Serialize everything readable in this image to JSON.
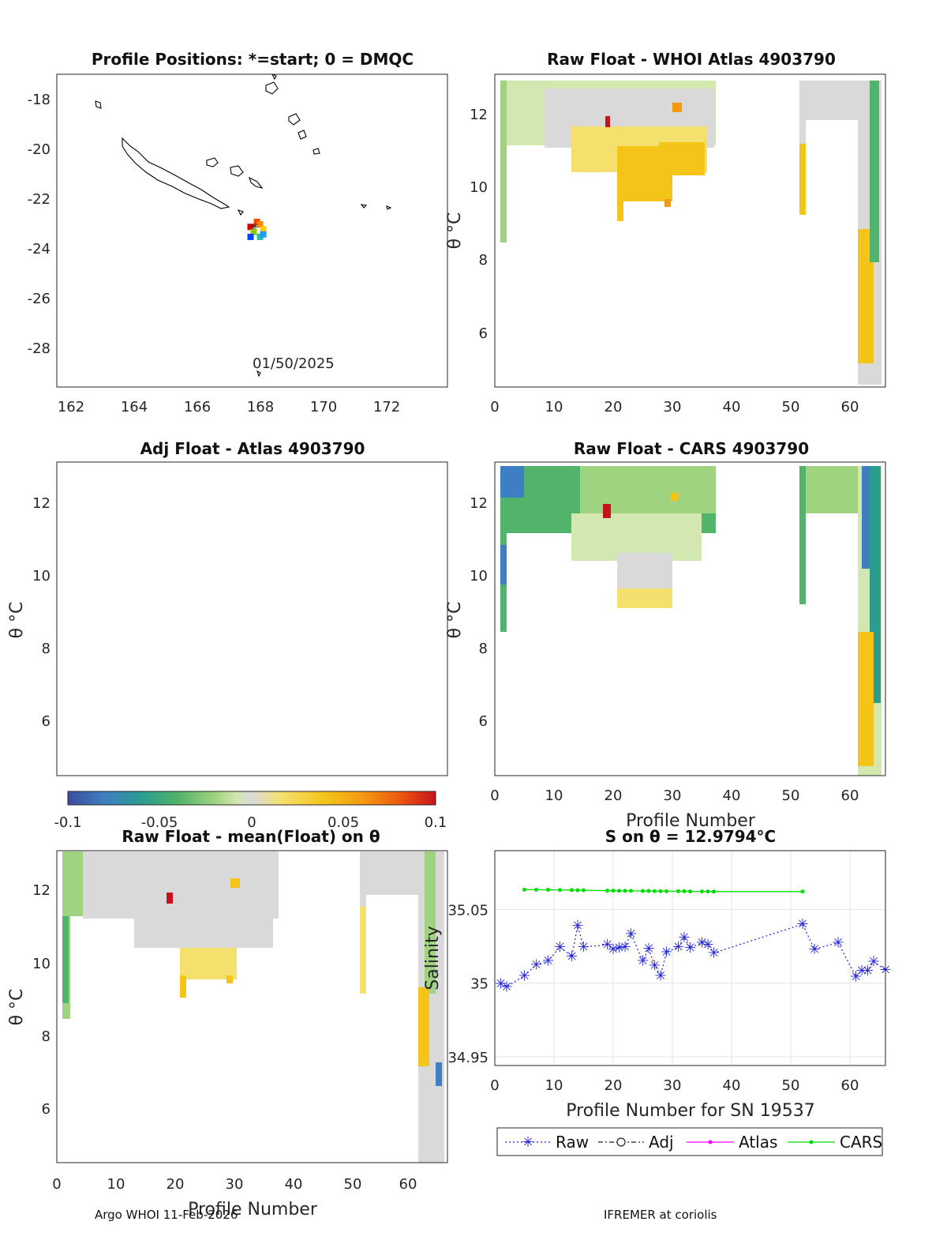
{
  "chart_data": [
    {
      "id": "map",
      "type": "scatter",
      "title": "Profile Positions: *=start; 0 = DMQC",
      "xlim": [
        161.5,
        173.8
      ],
      "ylim": [
        -29.6,
        -17.1
      ],
      "x_ticks": [
        "162",
        "164",
        "166",
        "168",
        "170",
        "172"
      ],
      "y_ticks": [
        "-18",
        "-20",
        "-22",
        "-24",
        "-26",
        "-28"
      ],
      "annotation": "01/50/2025",
      "float_positions": [
        {
          "x": 167.6,
          "y": -23.2,
          "color": "#cc0000"
        },
        {
          "x": 167.8,
          "y": -23.0,
          "color": "#ff4400"
        },
        {
          "x": 167.9,
          "y": -23.1,
          "color": "#ff8800"
        },
        {
          "x": 168.0,
          "y": -23.3,
          "color": "#ffcc00"
        },
        {
          "x": 167.7,
          "y": -23.4,
          "color": "#88cc00"
        },
        {
          "x": 167.9,
          "y": -23.6,
          "color": "#22bbaa"
        },
        {
          "x": 168.0,
          "y": -23.5,
          "color": "#2299ff"
        },
        {
          "x": 167.6,
          "y": -23.6,
          "color": "#0044ff"
        }
      ]
    },
    {
      "id": "raw-whoi",
      "type": "heatmap",
      "title": "Raw Float - WHOI Atlas  4903790",
      "xlim": [
        0,
        66
      ],
      "ylim": [
        4.5,
        12.9
      ],
      "x_ticks": [
        "0",
        "10",
        "20",
        "30",
        "40",
        "50",
        "60"
      ],
      "y_ticks": [
        "6",
        "8",
        "10",
        "12"
      ],
      "ylabel": "θ °C"
    },
    {
      "id": "adj-atlas",
      "type": "heatmap",
      "title": "Adj Float - Atlas  4903790",
      "xlim": [
        0,
        66
      ],
      "ylim": [
        4.5,
        13.1
      ],
      "y_ticks": [
        "6",
        "8",
        "10",
        "12"
      ],
      "ylabel": "θ °C"
    },
    {
      "id": "raw-cars",
      "type": "heatmap",
      "title": "Raw Float - CARS  4903790",
      "xlim": [
        0,
        66
      ],
      "ylim": [
        4.5,
        13.0
      ],
      "x_ticks": [
        "0",
        "10",
        "20",
        "30",
        "40",
        "50",
        "60"
      ],
      "y_ticks": [
        "6",
        "8",
        "10",
        "12"
      ],
      "ylabel": "θ °C",
      "xlabel": "Profile Number"
    },
    {
      "id": "colorbar",
      "type": "colorbar",
      "range": [
        -0.1,
        0.1
      ],
      "tick_labels": [
        "-0.1",
        "-0.05",
        "0",
        "0.05",
        "0.1"
      ],
      "colors": [
        "#3a4d9c",
        "#3d7fc2",
        "#2a9d8f",
        "#52b36a",
        "#9fd37f",
        "#d3e8b0",
        "#d9d9d9",
        "#f4e06c",
        "#f4c518",
        "#f49a12",
        "#ef5a0e",
        "#c7131d"
      ]
    },
    {
      "id": "raw-mean",
      "type": "heatmap",
      "title": "Raw Float - mean(Float) on θ",
      "xlim": [
        0,
        66
      ],
      "ylim": [
        4.5,
        13.0
      ],
      "x_ticks": [
        "0",
        "10",
        "20",
        "30",
        "40",
        "50",
        "60"
      ],
      "y_ticks": [
        "6",
        "8",
        "10",
        "12"
      ],
      "ylabel": "θ °C",
      "xlabel": "Profile Number"
    },
    {
      "id": "s-on-theta",
      "type": "line",
      "title": "S on θ = 12.9794°C",
      "xlabel": "Profile Number for SN 19537",
      "ylabel": "Salinity",
      "xlim": [
        0,
        66
      ],
      "ylim": [
        34.944,
        35.09
      ],
      "x_ticks": [
        "0",
        "10",
        "20",
        "30",
        "40",
        "50",
        "60"
      ],
      "y_ticks": [
        "34.95",
        "35",
        "35.05"
      ],
      "grid": true,
      "series": [
        {
          "name": "Raw",
          "color": "#1f1fd6",
          "x": [
            1,
            2,
            5,
            7,
            9,
            11,
            13,
            14,
            15,
            19,
            20,
            21,
            22,
            23,
            25,
            26,
            27,
            28,
            29,
            31,
            32,
            33,
            35,
            36,
            37,
            52,
            54,
            58,
            61,
            62,
            63,
            64,
            66
          ],
          "y": [
            34.9995,
            34.9975,
            35.005,
            35.0125,
            35.015,
            35.0245,
            35.018,
            35.039,
            35.0245,
            35.026,
            35.023,
            35.024,
            35.0245,
            35.0335,
            35.015,
            35.0235,
            35.012,
            35.005,
            35.021,
            35.0245,
            35.031,
            35.024,
            35.0275,
            35.026,
            35.0205,
            35.04,
            35.023,
            35.0275,
            35.0045,
            35.0085,
            35.0085,
            35.0145,
            35.009
          ]
        },
        {
          "name": "Adj",
          "color": "#222222",
          "x": [],
          "y": []
        },
        {
          "name": "Atlas",
          "color": "#ff00ff",
          "x": [],
          "y": []
        },
        {
          "name": "CARS",
          "color": "#00dd00",
          "x": [
            5,
            7,
            9,
            11,
            13,
            14,
            15,
            19,
            20,
            21,
            22,
            23,
            25,
            26,
            27,
            28,
            29,
            31,
            32,
            33,
            35,
            36,
            37,
            52
          ],
          "y": [
            35.0635,
            35.0635,
            35.0634,
            35.0633,
            35.0632,
            35.0631,
            35.0631,
            35.0628,
            35.0628,
            35.0627,
            35.0627,
            35.0627,
            35.0626,
            35.0626,
            35.0625,
            35.0625,
            35.0624,
            35.0624,
            35.0624,
            35.0623,
            35.0623,
            35.0623,
            35.0622,
            35.0622
          ]
        }
      ]
    }
  ],
  "footer": {
    "left": "Argo WHOI 11-Feb-2026",
    "right": "IFREMER at coriolis"
  }
}
